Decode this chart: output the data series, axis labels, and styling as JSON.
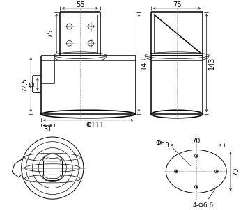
{
  "bg_color": "#ffffff",
  "line_color": "#000000",
  "fig_width": 3.59,
  "fig_height": 3.02,
  "dpi": 100,
  "dimensions": {
    "d55": "55",
    "d75_top": "75",
    "d75_side": "75",
    "d143": "143",
    "d72_5": "72,5",
    "d45": "45",
    "d31": "31",
    "phi111": "Φ111",
    "phi65": "Φ65",
    "four_phi66": "4-Φ6.6",
    "d70_top": "70",
    "d70_right": "70"
  }
}
